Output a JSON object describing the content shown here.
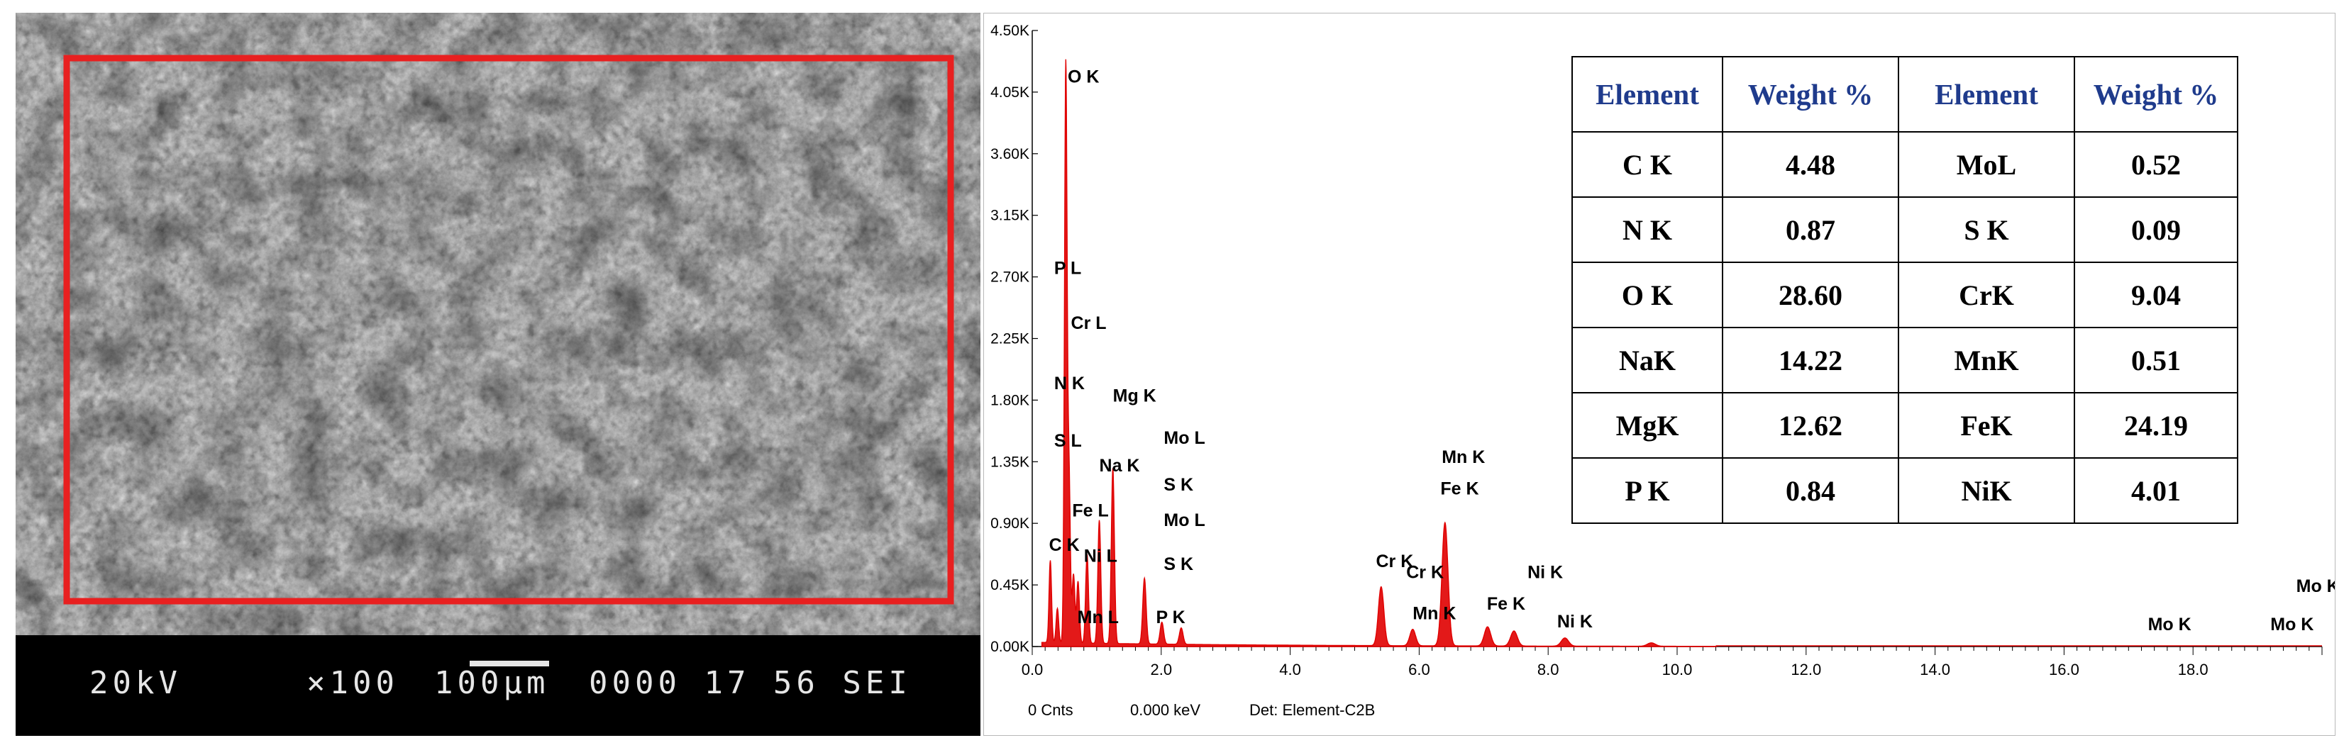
{
  "sem": {
    "voltage": "20kV",
    "magnification": "×100",
    "scale_label": "100μm",
    "info": "0000 17 56 SEI",
    "roi_color": "#e82020"
  },
  "chart_data": {
    "type": "line",
    "xlim": [
      0,
      20
    ],
    "ylim": [
      0,
      4500
    ],
    "x_ticks": [
      "0.0",
      "2.0",
      "4.0",
      "6.0",
      "8.0",
      "10.0",
      "12.0",
      "14.0",
      "16.0",
      "18.0"
    ],
    "y_ticks": [
      "0.00K",
      "0.45K",
      "0.90K",
      "1.35K",
      "1.80K",
      "2.25K",
      "2.70K",
      "3.15K",
      "3.60K",
      "4.05K",
      "4.50K"
    ],
    "line_color": "#e00000",
    "peaks": [
      {
        "kev": 0.28,
        "counts": 600
      },
      {
        "kev": 0.39,
        "counts": 250
      },
      {
        "kev": 0.52,
        "counts": 4200
      },
      {
        "kev": 0.57,
        "counts": 1200
      },
      {
        "kev": 0.64,
        "counts": 500
      },
      {
        "kev": 0.71,
        "counts": 450
      },
      {
        "kev": 0.85,
        "counts": 650
      },
      {
        "kev": 1.04,
        "counts": 900
      },
      {
        "kev": 1.25,
        "counts": 1280
      },
      {
        "kev": 1.74,
        "counts": 480
      },
      {
        "kev": 2.01,
        "counts": 160
      },
      {
        "kev": 2.31,
        "counts": 120
      },
      {
        "kev": 5.41,
        "counts": 430
      },
      {
        "kev": 5.9,
        "counts": 120
      },
      {
        "kev": 6.4,
        "counts": 900
      },
      {
        "kev": 7.06,
        "counts": 140
      },
      {
        "kev": 7.47,
        "counts": 110
      },
      {
        "kev": 8.26,
        "counts": 60
      },
      {
        "kev": 9.6,
        "counts": 25
      }
    ],
    "peak_labels": [
      {
        "text": "O K",
        "kev": 0.55,
        "counts": 4120
      },
      {
        "text": "P L",
        "kev": 0.34,
        "counts": 2720
      },
      {
        "text": "Cr L",
        "kev": 0.6,
        "counts": 2320
      },
      {
        "text": "N K",
        "kev": 0.34,
        "counts": 1880
      },
      {
        "text": "Mg K",
        "kev": 1.25,
        "counts": 1790
      },
      {
        "text": "S L",
        "kev": 0.34,
        "counts": 1460
      },
      {
        "text": "Na K",
        "kev": 1.04,
        "counts": 1280
      },
      {
        "text": "Mo L",
        "kev": 2.04,
        "counts": 1480
      },
      {
        "text": "S K",
        "kev": 2.04,
        "counts": 1140
      },
      {
        "text": "Fe L",
        "kev": 0.62,
        "counts": 950
      },
      {
        "text": "C K",
        "kev": 0.26,
        "counts": 700
      },
      {
        "text": "Ni L",
        "kev": 0.8,
        "counts": 620
      },
      {
        "text": "Mo L",
        "kev": 2.04,
        "counts": 880
      },
      {
        "text": "S K",
        "kev": 2.04,
        "counts": 560
      },
      {
        "text": "Mn L",
        "kev": 0.7,
        "counts": 170
      },
      {
        "text": "P K",
        "kev": 1.92,
        "counts": 170
      },
      {
        "text": "Cr K",
        "kev": 5.33,
        "counts": 580
      },
      {
        "text": "Cr K",
        "kev": 5.8,
        "counts": 500
      },
      {
        "text": "Mn K",
        "kev": 6.35,
        "counts": 1340
      },
      {
        "text": "Fe K",
        "kev": 6.33,
        "counts": 1110
      },
      {
        "text": "Mn K",
        "kev": 5.9,
        "counts": 200
      },
      {
        "text": "Fe K",
        "kev": 7.05,
        "counts": 270
      },
      {
        "text": "Ni K",
        "kev": 7.68,
        "counts": 500
      },
      {
        "text": "Ni K",
        "kev": 8.14,
        "counts": 140
      },
      {
        "text": "Mo K",
        "kev": 19.6,
        "counts": 400
      },
      {
        "text": "Mo K",
        "kev": 17.3,
        "counts": 120
      },
      {
        "text": "Mo K",
        "kev": 19.2,
        "counts": 120
      }
    ],
    "footer": {
      "cnts": "0 Cnts",
      "kev": "0.000 keV",
      "det": "Det: Element-C2B"
    }
  },
  "table": {
    "headers": [
      "Element",
      "Weight %",
      "Element",
      "Weight %"
    ],
    "rows": [
      [
        "C K",
        "4.48",
        "MoL",
        "0.52"
      ],
      [
        "N K",
        "0.87",
        "S K",
        "0.09"
      ],
      [
        "O K",
        "28.60",
        "CrK",
        "9.04"
      ],
      [
        "NaK",
        "14.22",
        "MnK",
        "0.51"
      ],
      [
        "MgK",
        "12.62",
        "FeK",
        "24.19"
      ],
      [
        "P K",
        "0.84",
        "NiK",
        "4.01"
      ]
    ]
  }
}
